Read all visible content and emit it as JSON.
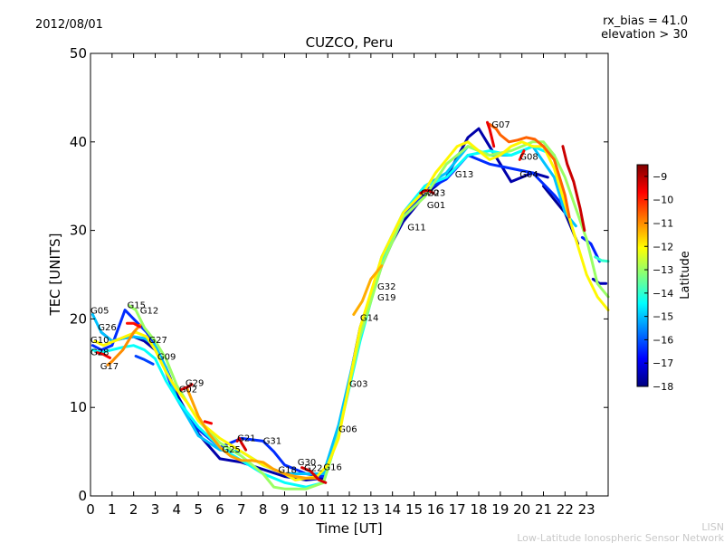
{
  "header": {
    "date": "2012/08/01",
    "rx_bias": "rx_bias = 41.0",
    "elevation": "elevation > 30"
  },
  "footer": {
    "line1": "LISN",
    "line2": "Low-Latitude Ionospheric Sensor Network"
  },
  "chart_data": {
    "type": "line",
    "title": "CUZCO, Peru",
    "xlabel": "Time [UT]",
    "ylabel": "TEC [UNITS]",
    "xlim": [
      0,
      24
    ],
    "ylim": [
      0,
      50
    ],
    "xticks": [
      "0",
      "1",
      "2",
      "3",
      "4",
      "5",
      "6",
      "7",
      "8",
      "9",
      "10",
      "11",
      "12",
      "13",
      "14",
      "15",
      "16",
      "17",
      "18",
      "19",
      "20",
      "21",
      "22",
      "23"
    ],
    "yticks": [
      "0",
      "10",
      "20",
      "30",
      "40",
      "50"
    ],
    "grid": false,
    "colorbar": {
      "label": "Latitude",
      "min": -18,
      "max": -8.5,
      "ticks": [
        "-9",
        "-10",
        "-11",
        "-12",
        "-13",
        "-14",
        "-15",
        "-16",
        "-17",
        "-18"
      ],
      "colormap": [
        "#00007f",
        "#0000ff",
        "#007fff",
        "#00ffff",
        "#7fff7f",
        "#ffff00",
        "#ff7f00",
        "#ff0000",
        "#7f0000"
      ]
    },
    "series": [
      {
        "lat": -17.6,
        "x": [
          0.5,
          1.0,
          1.5,
          2.0,
          2.5,
          3.0,
          3.5,
          4.0,
          5.0,
          6.0,
          7.0,
          8.0,
          9.0,
          10.0,
          10.8,
          11.5,
          12.5,
          13.5,
          14.5,
          15.5,
          16.5,
          17.5,
          18.0,
          18.5,
          19.5,
          20.5,
          21.2
        ],
        "y": [
          18.5,
          17.5,
          17.8,
          18.0,
          17.5,
          16.5,
          14.5,
          11.5,
          7.0,
          4.2,
          3.8,
          3.0,
          2.2,
          1.8,
          2.0,
          7.0,
          19.0,
          26.5,
          31.0,
          34.0,
          36.0,
          40.5,
          41.5,
          39.5,
          35.5,
          36.5,
          36.0
        ]
      },
      {
        "lat": -17.8,
        "x": [
          21.0,
          21.5,
          22.0,
          22.6
        ],
        "y": [
          35.0,
          33.5,
          32.0,
          28.5
        ]
      },
      {
        "lat": -17.5,
        "x": [
          23.3,
          23.6,
          23.9
        ],
        "y": [
          24.5,
          24.0,
          24.0
        ]
      },
      {
        "lat": -16.4,
        "x": [
          0.1,
          0.5,
          1.0,
          1.6,
          2.0,
          2.6,
          3.0,
          3.5,
          4.0,
          5.0,
          6.0,
          7.0,
          8.0,
          8.5,
          9.0,
          10.0,
          10.8,
          11.5,
          12.5,
          13.5,
          14.5,
          15.5,
          16.5,
          17.5,
          18.5,
          19.5,
          20.5,
          21.5,
          22.0
        ],
        "y": [
          17.0,
          16.5,
          17.0,
          21.0,
          20.0,
          18.5,
          17.0,
          14.0,
          11.0,
          7.5,
          5.5,
          6.5,
          6.2,
          5.0,
          3.5,
          2.5,
          2.2,
          7.5,
          18.5,
          26.0,
          31.5,
          34.5,
          35.8,
          38.5,
          37.5,
          37.0,
          36.5,
          34.0,
          32.5
        ]
      },
      {
        "lat": -16.2,
        "x": [
          2.1,
          2.5,
          2.9
        ],
        "y": [
          15.8,
          15.4,
          14.9
        ]
      },
      {
        "lat": -16.5,
        "x": [
          22.8,
          23.2,
          23.6
        ],
        "y": [
          29.2,
          28.5,
          26.5
        ]
      },
      {
        "lat": -15.0,
        "x": [
          0.1,
          0.5,
          1.0,
          1.5,
          2.0,
          2.5,
          3.0,
          3.5,
          4.0,
          5.0,
          6.0,
          7.0,
          8.0,
          9.0,
          10.0,
          10.8,
          11.5,
          12.5,
          13.5,
          14.5,
          15.5,
          16.5,
          17.5,
          18.5,
          19.5,
          20.5,
          21.5,
          22.0,
          22.5
        ],
        "y": [
          20.5,
          18.5,
          17.5,
          17.8,
          18.0,
          17.8,
          17.0,
          14.5,
          11.0,
          6.8,
          5.2,
          5.0,
          3.5,
          2.5,
          2.5,
          2.5,
          8.0,
          18.5,
          27.0,
          32.0,
          35.0,
          36.5,
          39.5,
          38.5,
          38.5,
          39.5,
          36.0,
          32.0,
          30.5
        ]
      },
      {
        "lat": -14.4,
        "x": [
          0.1,
          0.5,
          1.0,
          1.5,
          2.0,
          2.5,
          3.0,
          3.5,
          4.0,
          5.0,
          6.0,
          7.0,
          8.0,
          9.0,
          10.0,
          10.8,
          11.5,
          12.5,
          13.5,
          14.5,
          15.5,
          16.5,
          17.5,
          18.5,
          19.5,
          20.5,
          21.5
        ],
        "y": [
          16.5,
          16.2,
          16.5,
          16.8,
          17.0,
          16.5,
          15.5,
          13.0,
          11.0,
          7.8,
          5.5,
          4.0,
          2.5,
          1.5,
          1.0,
          1.5,
          7.0,
          17.5,
          26.5,
          32.0,
          35.0,
          36.0,
          38.5,
          39.0,
          38.5,
          39.5,
          38.5
        ]
      },
      {
        "lat": -14.0,
        "x": [
          23.4,
          23.7,
          24.0
        ],
        "y": [
          27.0,
          26.6,
          26.5
        ]
      },
      {
        "lat": -13.0,
        "x": [
          1.8,
          2.1,
          2.5,
          3.0,
          3.5,
          4.0,
          5.0,
          6.0,
          7.0,
          8.0,
          8.5,
          9.0,
          10.0,
          10.8,
          11.5,
          12.5,
          13.5,
          14.5,
          15.5,
          16.5,
          17.5,
          18.5,
          19.5,
          20.5,
          21.0,
          21.5,
          22.0,
          23.0,
          23.5,
          24.0
        ],
        "y": [
          21.5,
          21.0,
          19.0,
          17.5,
          15.5,
          12.5,
          8.5,
          6.0,
          4.5,
          2.5,
          1.0,
          0.8,
          0.8,
          1.5,
          7.0,
          18.0,
          26.0,
          31.5,
          33.8,
          37.5,
          39.5,
          38.5,
          39.0,
          40.0,
          40.0,
          38.5,
          36.0,
          29.0,
          24.0,
          22.5
        ]
      },
      {
        "lat": -12.0,
        "x": [
          0.2,
          0.6,
          1.1,
          1.6,
          2.1,
          2.6,
          3.0,
          3.5,
          4.0,
          4.5,
          5.0,
          6.0,
          7.0,
          8.0,
          9.0,
          9.5,
          10.0,
          10.5,
          11.0,
          11.5,
          12.5,
          13.5,
          14.5,
          15.5,
          16.0,
          16.5,
          17.0,
          17.5,
          18.0,
          18.5,
          19.0,
          19.5,
          20.0,
          20.5,
          21.0,
          21.5,
          22.0,
          22.5,
          23.0,
          23.5,
          24.0
        ],
        "y": [
          17.5,
          17.0,
          17.5,
          18.0,
          18.5,
          18.0,
          16.5,
          14.0,
          12.0,
          10.5,
          8.5,
          6.5,
          5.0,
          3.5,
          2.5,
          1.8,
          2.0,
          2.2,
          3.5,
          6.5,
          19.0,
          27.0,
          32.0,
          34.5,
          36.5,
          38.0,
          39.5,
          40.0,
          39.0,
          38.0,
          38.5,
          39.5,
          40.0,
          39.5,
          39.5,
          37.0,
          33.0,
          29.0,
          25.0,
          22.5,
          21.0
        ]
      },
      {
        "lat": -11.0,
        "x": [
          0.8,
          1.0,
          1.5,
          2.0,
          2.3
        ],
        "y": [
          14.8,
          15.2,
          16.5,
          18.5,
          19.3
        ]
      },
      {
        "lat": -11.2,
        "x": [
          4.5,
          5.0,
          5.5,
          6.0,
          6.5,
          7.0,
          7.5,
          8.0,
          8.5,
          9.0,
          9.5,
          10.0,
          10.5
        ],
        "y": [
          12.0,
          9.0,
          7.0,
          5.5,
          4.5,
          4.0,
          4.0,
          3.8,
          3.0,
          2.5,
          2.2,
          2.0,
          2.0
        ]
      },
      {
        "lat": -11.3,
        "x": [
          12.2,
          12.6,
          13.0,
          13.5
        ],
        "y": [
          20.5,
          22.0,
          24.5,
          26.0
        ]
      },
      {
        "lat": -10.6,
        "x": [
          18.5,
          18.8,
          19.0,
          19.4,
          19.8,
          20.2,
          20.6,
          21.0,
          21.5,
          22.0,
          22.2
        ],
        "y": [
          42.0,
          41.5,
          40.8,
          40.0,
          40.2,
          40.5,
          40.3,
          39.5,
          38.0,
          34.0,
          31.5
        ]
      },
      {
        "lat": -9.6,
        "x": [
          0.3,
          0.6,
          0.9
        ],
        "y": [
          16.2,
          16.0,
          15.6
        ]
      },
      {
        "lat": -9.8,
        "x": [
          1.7,
          2.0,
          2.3
        ],
        "y": [
          19.5,
          19.5,
          19.1
        ]
      },
      {
        "lat": -9.3,
        "x": [
          4.2,
          4.5,
          4.7
        ],
        "y": [
          12.0,
          12.3,
          12.6
        ]
      },
      {
        "lat": -9.3,
        "x": [
          6.8,
          6.9,
          7.0,
          7.2
        ],
        "y": [
          6.2,
          6.5,
          6.0,
          5.2
        ]
      },
      {
        "lat": -9.3,
        "x": [
          9.8,
          10.2,
          10.6,
          10.9
        ],
        "y": [
          3.2,
          2.8,
          1.8,
          1.5
        ]
      },
      {
        "lat": -9.3,
        "x": [
          15.3,
          15.5,
          15.7,
          15.9
        ],
        "y": [
          34.2,
          34.5,
          34.5,
          34.2
        ]
      },
      {
        "lat": -9.5,
        "x": [
          18.4,
          18.5,
          18.6,
          18.7
        ],
        "y": [
          42.2,
          41.5,
          40.5,
          39.5
        ]
      },
      {
        "lat": -9.8,
        "x": [
          19.9,
          20.0,
          20.1
        ],
        "y": [
          38.0,
          38.5,
          39.0
        ]
      },
      {
        "lat": -9.2,
        "x": [
          21.9,
          22.1,
          22.4,
          22.7,
          22.9
        ],
        "y": [
          39.5,
          37.5,
          35.5,
          32.5,
          30.0
        ]
      },
      {
        "lat": -9.6,
        "x": [
          5.3,
          5.6
        ],
        "y": [
          8.4,
          8.2
        ]
      }
    ],
    "annotations": [
      {
        "text": "G05",
        "x": 0.0,
        "y": 20.6
      },
      {
        "text": "G26",
        "x": 0.35,
        "y": 18.7
      },
      {
        "text": "G10",
        "x": 0.0,
        "y": 17.3
      },
      {
        "text": "G28",
        "x": 0.0,
        "y": 15.9
      },
      {
        "text": "G17",
        "x": 0.45,
        "y": 14.3
      },
      {
        "text": "G15",
        "x": 1.7,
        "y": 21.2
      },
      {
        "text": "G12",
        "x": 2.3,
        "y": 20.6
      },
      {
        "text": "G27",
        "x": 2.7,
        "y": 17.3
      },
      {
        "text": "G09",
        "x": 3.1,
        "y": 15.4
      },
      {
        "text": "G29",
        "x": 4.4,
        "y": 12.4
      },
      {
        "text": "G02",
        "x": 4.1,
        "y": 11.7
      },
      {
        "text": "G21",
        "x": 6.8,
        "y": 6.2
      },
      {
        "text": "G31",
        "x": 8.0,
        "y": 5.9
      },
      {
        "text": "G25",
        "x": 6.1,
        "y": 4.9
      },
      {
        "text": "G30",
        "x": 9.6,
        "y": 3.5
      },
      {
        "text": "G18",
        "x": 8.7,
        "y": 2.6
      },
      {
        "text": "G22",
        "x": 9.9,
        "y": 2.8
      },
      {
        "text": "G16",
        "x": 10.8,
        "y": 2.9
      },
      {
        "text": "G06",
        "x": 11.5,
        "y": 7.2
      },
      {
        "text": "G03",
        "x": 12.0,
        "y": 12.3
      },
      {
        "text": "G14",
        "x": 12.5,
        "y": 19.8
      },
      {
        "text": "G19",
        "x": 13.3,
        "y": 22.1
      },
      {
        "text": "G32",
        "x": 13.3,
        "y": 23.3
      },
      {
        "text": "G11",
        "x": 14.7,
        "y": 30.0
      },
      {
        "text": "G01",
        "x": 15.6,
        "y": 32.5
      },
      {
        "text": "G20",
        "x": 15.3,
        "y": 33.9
      },
      {
        "text": "G23",
        "x": 15.6,
        "y": 33.9
      },
      {
        "text": "G13",
        "x": 16.9,
        "y": 36.0
      },
      {
        "text": "G07",
        "x": 18.6,
        "y": 41.6
      },
      {
        "text": "G08",
        "x": 19.9,
        "y": 38.0
      },
      {
        "text": "G04",
        "x": 19.9,
        "y": 36.0
      }
    ]
  }
}
